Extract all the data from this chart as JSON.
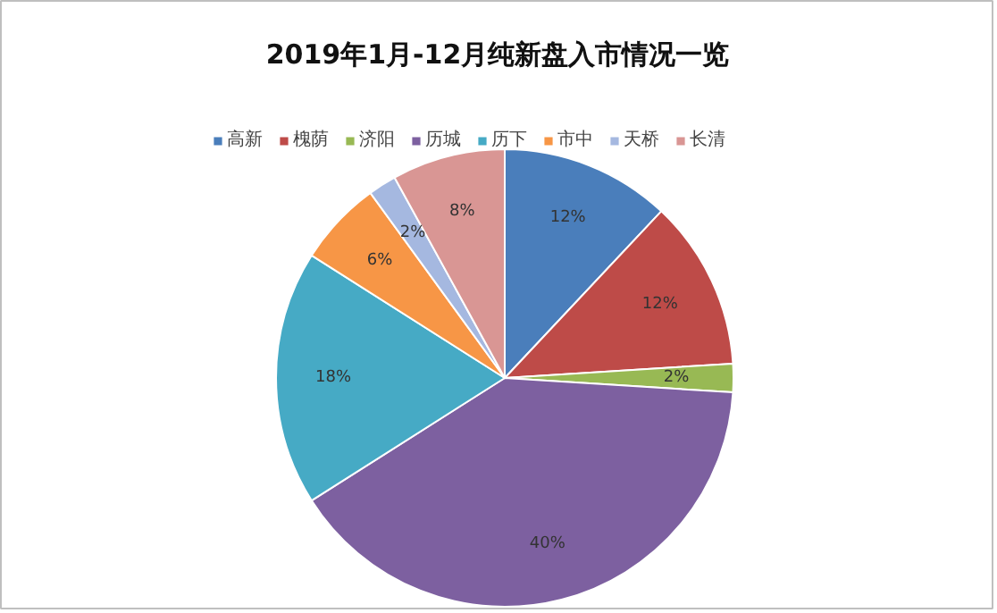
{
  "chart_data": {
    "type": "pie",
    "title": "2019年1月-12月纯新盘入市情况一览",
    "categories": [
      "高新",
      "槐荫",
      "济阳",
      "历城",
      "历下",
      "市中",
      "天桥",
      "长清"
    ],
    "values": [
      12,
      12,
      2,
      40,
      18,
      6,
      2,
      8
    ],
    "value_labels": [
      "12%",
      "12%",
      "2%",
      "40%",
      "18%",
      "6%",
      "2%",
      "8%"
    ],
    "colors": [
      "#4a7ebb",
      "#be4b48",
      "#98b954",
      "#7d60a0",
      "#46aac5",
      "#f79646",
      "#a5b8e0",
      "#d99694"
    ],
    "legend": "top"
  }
}
